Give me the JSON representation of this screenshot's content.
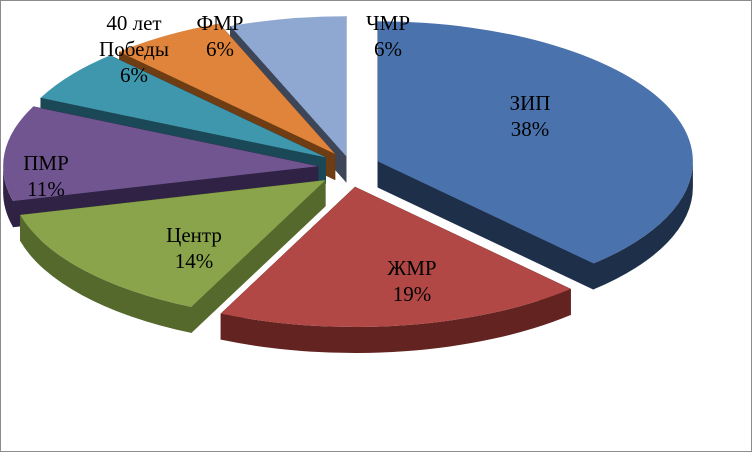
{
  "chart_data": {
    "type": "pie",
    "three_d": true,
    "exploded": true,
    "slices": [
      {
        "name": "ЗИП",
        "value": 38,
        "label": "38%",
        "color": "#4a72ac",
        "side": "#1e2f4a"
      },
      {
        "name": "ЖМР",
        "value": 19,
        "label": "19%",
        "color": "#b14845",
        "side": "#632421"
      },
      {
        "name": "Центр",
        "value": 14,
        "label": "14%",
        "color": "#89a44b",
        "side": "#55692c"
      },
      {
        "name": "ПМР",
        "value": 11,
        "label": "11%",
        "color": "#705590",
        "side": "#2f2244"
      },
      {
        "name": "40 лет Победы",
        "name_lines": [
          "40 лет",
          "Победы"
        ],
        "value": 6,
        "label": "6%",
        "color": "#3f97ad",
        "side": "#1b4856"
      },
      {
        "name": "ФМР",
        "value": 6,
        "label": "6%",
        "color": "#e0843b",
        "side": "#6e3d14"
      },
      {
        "name": "ЧМР",
        "value": 6,
        "label": "6%",
        "color": "#8fa8d1",
        "side": "#3c4658"
      }
    ]
  }
}
